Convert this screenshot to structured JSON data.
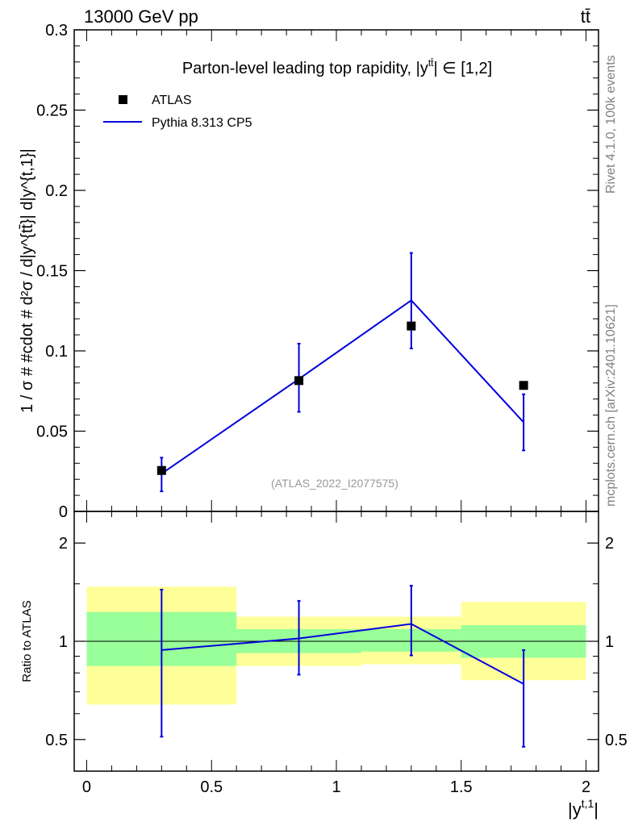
{
  "header": {
    "energy_label": "13000 GeV pp",
    "process_label": "tt̄"
  },
  "side_labels": {
    "rivet": "Rivet 4.1.0,  100k events",
    "mcplots": "mcplots.cern.ch [arXiv:2401.10621]"
  },
  "colors": {
    "mc_line": "#0000dd",
    "band_inner": "#99ff99",
    "band_outer": "#ffff99",
    "data_marker": "#000000"
  },
  "chart_data": [
    {
      "type": "line",
      "title": "Parton-level leading top rapidity, |y^{tt̄}| ∈ [1,2]",
      "title_main": "Parton-level leading top rapidity, |",
      "title_sym": "y",
      "title_sup": "tt̄",
      "title_end": "| ∈ [1,2]",
      "ylabel": "1 / σ # #cdot # d²σ / d|y^{tt̄}| d|y^{t,1}|",
      "ylim": [
        0,
        0.3
      ],
      "yticks": [
        0,
        0.05,
        0.1,
        0.15,
        0.2,
        0.25,
        0.3
      ],
      "ytick_labels": [
        "0",
        "0.05",
        "0.1",
        "0.15",
        "0.2",
        "0.25",
        "0.3"
      ],
      "xlim": [
        -0.05,
        2.05
      ],
      "watermark": "(ATLAS_2022_I2077575)",
      "legend": [
        "ATLAS",
        "Pythia 8.313 CP5"
      ],
      "legend_position": "top-left",
      "series": [
        {
          "name": "ATLAS",
          "kind": "markers",
          "x": [
            0.3,
            0.85,
            1.3,
            1.75
          ],
          "y": [
            0.0255,
            0.0815,
            0.1155,
            0.0785
          ]
        },
        {
          "name": "Pythia 8.313 CP5",
          "kind": "line",
          "x": [
            0.3,
            0.85,
            1.3,
            1.75
          ],
          "y": [
            0.0235,
            0.0825,
            0.1315,
            0.0555
          ],
          "err_low": [
            0.0125,
            0.062,
            0.1015,
            0.038
          ],
          "err_high": [
            0.0335,
            0.1045,
            0.161,
            0.073
          ]
        }
      ]
    },
    {
      "type": "line",
      "ylabel": "Ratio to ATLAS",
      "xlabel": "|y^{t,1}|",
      "ylim_log": [
        0.4,
        2.5
      ],
      "yticks": [
        0.5,
        1,
        2
      ],
      "ytick_labels": [
        "0.5",
        "1",
        "2"
      ],
      "xlim": [
        -0.05,
        2.05
      ],
      "xticks": [
        0,
        0.5,
        1,
        1.5,
        2
      ],
      "xtick_labels": [
        "0",
        "0.5",
        "1",
        "1.5",
        "2"
      ],
      "bins": [
        {
          "x_low": 0.0,
          "x_high": 0.6,
          "inner": [
            0.84,
            1.23
          ],
          "outer": [
            0.64,
            1.47
          ]
        },
        {
          "x_low": 0.6,
          "x_high": 1.1,
          "inner": [
            0.92,
            1.09
          ],
          "outer": [
            0.84,
            1.19
          ]
        },
        {
          "x_low": 1.1,
          "x_high": 1.5,
          "inner": [
            0.93,
            1.09
          ],
          "outer": [
            0.85,
            1.19
          ]
        },
        {
          "x_low": 1.5,
          "x_high": 2.0,
          "inner": [
            0.89,
            1.12
          ],
          "outer": [
            0.76,
            1.32
          ]
        }
      ],
      "series": [
        {
          "name": "Pythia 8.313 CP5 / ATLAS",
          "x": [
            0.3,
            0.85,
            1.3,
            1.75
          ],
          "y": [
            0.94,
            1.02,
            1.13,
            0.74
          ],
          "err_low": [
            0.51,
            0.79,
            0.905,
            0.475
          ],
          "err_high": [
            1.44,
            1.33,
            1.48,
            0.94
          ]
        }
      ]
    }
  ]
}
